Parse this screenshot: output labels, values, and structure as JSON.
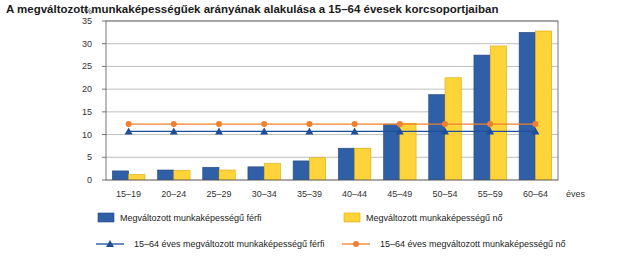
{
  "chart_data": {
    "type": "bar",
    "title": "A megváltozott munkaképességűek arányának alakulása a 15–64 évesek korcsoportjaiban",
    "y_label": "%",
    "x_label": "éves",
    "categories": [
      "15–19",
      "20–24",
      "25–29",
      "30–34",
      "35–39",
      "40–44",
      "45–49",
      "50–54",
      "55–59",
      "60–64"
    ],
    "series": [
      {
        "name": "Megváltozott munkaképességű férfi",
        "type": "bar",
        "color": "#2f5fa7",
        "values": [
          2.0,
          2.2,
          2.8,
          2.9,
          4.2,
          7.0,
          12.3,
          18.8,
          27.5,
          32.5
        ]
      },
      {
        "name": "Megváltozott munkaképességű nő",
        "type": "bar",
        "color": "#ffd43b",
        "values": [
          1.2,
          2.1,
          2.2,
          3.6,
          4.9,
          7.0,
          12.5,
          22.5,
          29.5,
          32.8
        ]
      },
      {
        "name": "15–64 éves megváltozott munkaképességű férfi",
        "type": "line",
        "color": "#1f4e9a",
        "marker": "triangle",
        "values": [
          10.7,
          10.7,
          10.7,
          10.7,
          10.7,
          10.7,
          10.7,
          10.7,
          10.7,
          10.7
        ]
      },
      {
        "name": "15–64 éves megváltozott munkaképességű nő",
        "type": "line",
        "color": "#f08030",
        "marker": "circle",
        "values": [
          12.3,
          12.3,
          12.3,
          12.3,
          12.3,
          12.3,
          12.3,
          12.3,
          12.3,
          12.3
        ]
      }
    ],
    "ylim": [
      0,
      35
    ],
    "yticks": [
      0,
      5,
      10,
      15,
      20,
      25,
      30,
      35
    ],
    "grid": true,
    "legend": "bottom"
  }
}
